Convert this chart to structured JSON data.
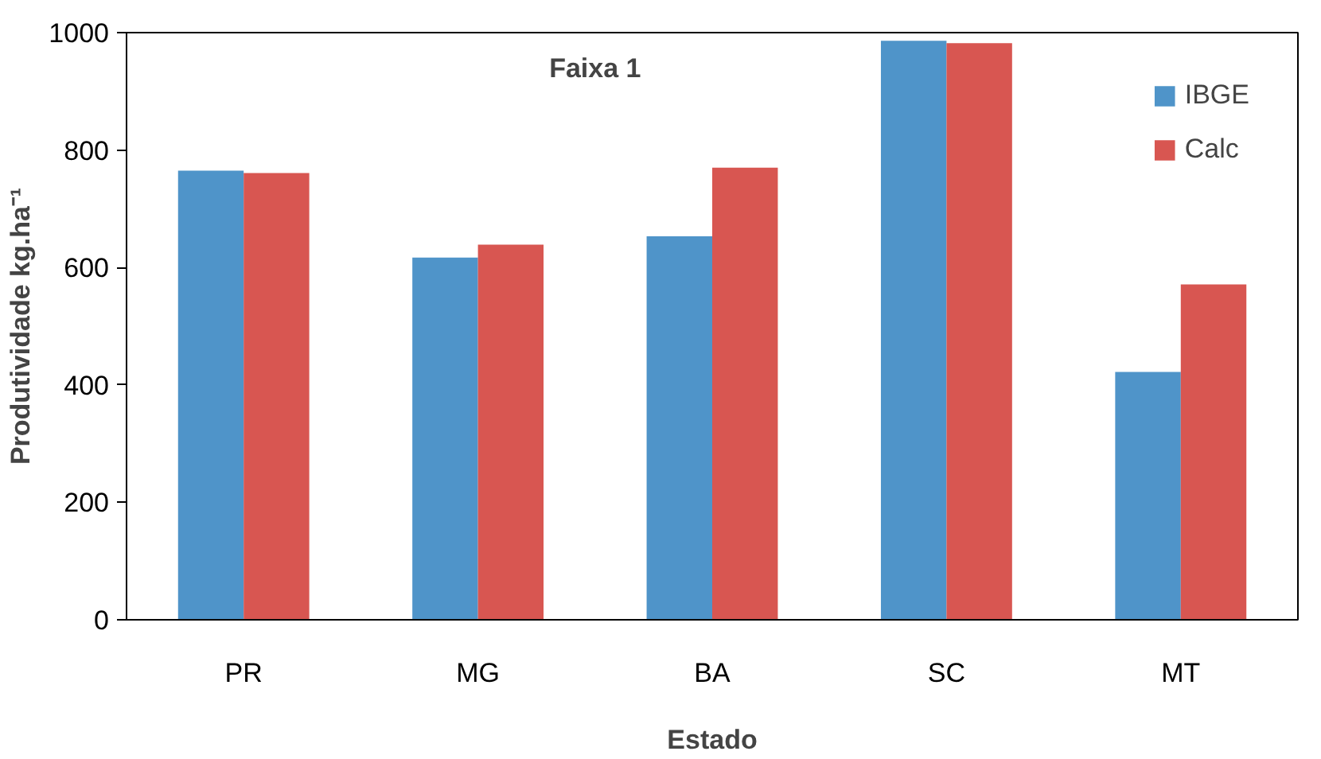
{
  "chart_data": {
    "type": "bar",
    "title": "Faixa 1",
    "xlabel": "Estado",
    "ylabel": "Produtividade kg.ha⁻¹",
    "categories": [
      "PR",
      "MG",
      "BA",
      "SC",
      "MT"
    ],
    "series": [
      {
        "name": "IBGE",
        "color": "#4f94c9",
        "values": [
          765,
          617,
          653,
          986,
          422
        ]
      },
      {
        "name": "Calc",
        "color": "#d85651",
        "values": [
          761,
          639,
          770,
          982,
          571
        ]
      }
    ],
    "ylim": [
      0,
      1000
    ],
    "yticks": [
      0,
      200,
      400,
      600,
      800,
      1000
    ],
    "legend": "top right"
  }
}
